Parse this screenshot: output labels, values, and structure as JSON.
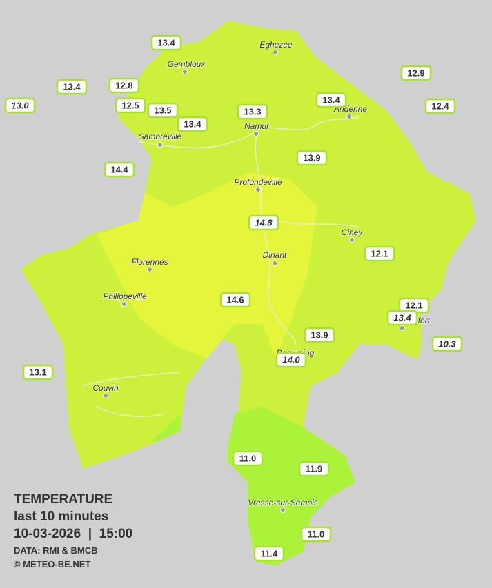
{
  "title": {
    "line1": "TEMPERATURE",
    "line2": "last 10 minutes",
    "line3": "10-03-2026  |  15:00",
    "credit1": "DATA: RMI & BMCB",
    "credit2": "© METEO-BE.NET"
  },
  "cities": [
    "Eghezee",
    "Gembloux",
    "Andenne",
    "Namur",
    "Sambreville",
    "Profondeville",
    "Ciney",
    "Florennes",
    "Dinant",
    "Philippeville",
    "Rochefort",
    "Beauraing",
    "Couvin",
    "Vresse-sur-Semois"
  ],
  "stations": [
    "13.4",
    "12.9",
    "13.4",
    "12.8",
    "13.0",
    "12.5",
    "13.5",
    "13.4",
    "13.3",
    "13.4",
    "12.4",
    "13.9",
    "14.4",
    "14.8",
    "12.1",
    "14.6",
    "12.1",
    "13.4",
    "10.3",
    "13.9",
    "14.0",
    "13.1",
    "11.0",
    "11.9",
    "11.0",
    "11.4"
  ]
}
